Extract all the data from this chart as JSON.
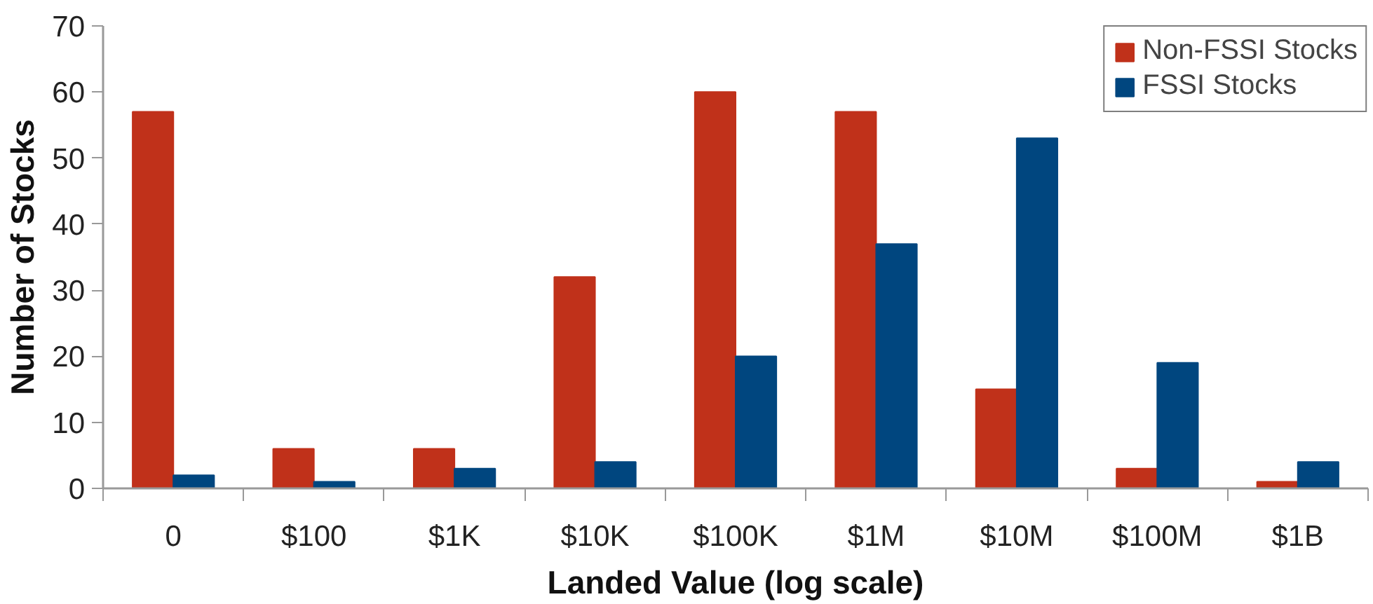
{
  "chart_data": {
    "type": "bar",
    "xlabel": "Landed Value (log scale)",
    "ylabel": "Number of Stocks",
    "categories": [
      "0",
      "$100",
      "$1K",
      "$10K",
      "$100K",
      "$1M",
      "$10M",
      "$100M",
      "$1B"
    ],
    "series": [
      {
        "name": "Non-FSSI Stocks",
        "color": "#c0311a",
        "values": [
          57,
          6,
          6,
          32,
          60,
          57,
          15,
          3,
          1
        ]
      },
      {
        "name": "FSSI Stocks",
        "color": "#00467f",
        "values": [
          2,
          1,
          3,
          4,
          20,
          37,
          53,
          19,
          4
        ]
      }
    ],
    "ylim": [
      0,
      70
    ],
    "yticks": [
      0,
      10,
      20,
      30,
      40,
      50,
      60,
      70
    ],
    "grid": false,
    "legend": "top right"
  }
}
